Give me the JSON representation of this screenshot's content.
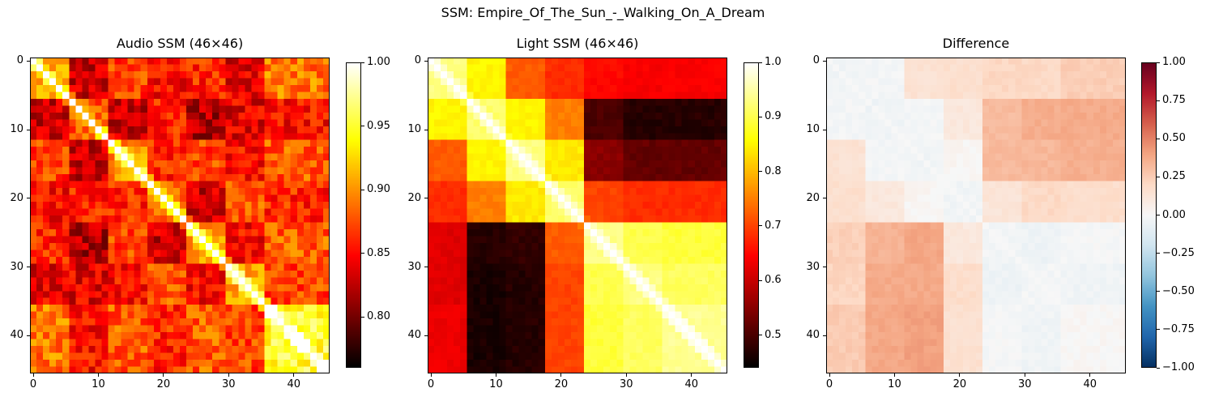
{
  "suptitle": "SSM: Empire_Of_The_Sun_-_Walking_On_A_Dream",
  "chart_data": [
    {
      "type": "heatmap",
      "title": "Audio SSM (46×46)",
      "size": 46,
      "colormap": "hot",
      "xticks": [
        0,
        10,
        20,
        30,
        40
      ],
      "yticks": [
        0,
        10,
        20,
        30,
        40
      ],
      "colorbar": {
        "vmin": 0.76,
        "vmax": 1.0,
        "ticks": [
          0.8,
          0.85,
          0.9,
          0.95,
          1.0
        ],
        "tick_labels": [
          "0.80",
          "0.85",
          "0.90",
          "0.95",
          "1.00"
        ]
      },
      "block_means": {
        "boundaries": [
          0,
          6,
          12,
          18,
          24,
          30,
          36,
          46
        ],
        "matrix": [
          [
            0.9,
            0.83,
            0.87,
            0.85,
            0.86,
            0.84,
            0.89
          ],
          [
            0.83,
            0.88,
            0.83,
            0.86,
            0.82,
            0.84,
            0.85
          ],
          [
            0.87,
            0.83,
            0.9,
            0.86,
            0.87,
            0.85,
            0.88
          ],
          [
            0.85,
            0.86,
            0.86,
            0.89,
            0.83,
            0.88,
            0.86
          ],
          [
            0.86,
            0.82,
            0.87,
            0.83,
            0.9,
            0.85,
            0.88
          ],
          [
            0.84,
            0.84,
            0.85,
            0.88,
            0.85,
            0.91,
            0.87
          ],
          [
            0.89,
            0.85,
            0.88,
            0.86,
            0.88,
            0.87,
            0.95
          ]
        ]
      }
    },
    {
      "type": "heatmap",
      "title": "Light SSM (46×46)",
      "size": 46,
      "colormap": "hot",
      "xticks": [
        0,
        10,
        20,
        30,
        40
      ],
      "yticks": [
        0,
        10,
        20,
        30,
        40
      ],
      "colorbar": {
        "vmin": 0.44,
        "vmax": 1.0,
        "ticks": [
          0.5,
          0.6,
          0.7,
          0.8,
          0.9,
          1.0
        ],
        "tick_labels": [
          "0.5",
          "0.6",
          "0.7",
          "0.8",
          "0.9",
          "1.0"
        ]
      },
      "block_means": {
        "boundaries": [
          0,
          6,
          12,
          18,
          24,
          30,
          36,
          46
        ],
        "matrix": [
          [
            0.93,
            0.85,
            0.72,
            0.68,
            0.65,
            0.64,
            0.64
          ],
          [
            0.85,
            0.92,
            0.85,
            0.75,
            0.5,
            0.47,
            0.47
          ],
          [
            0.72,
            0.85,
            0.93,
            0.84,
            0.55,
            0.52,
            0.52
          ],
          [
            0.68,
            0.75,
            0.84,
            0.92,
            0.7,
            0.68,
            0.68
          ],
          [
            0.62,
            0.47,
            0.48,
            0.72,
            0.93,
            0.9,
            0.89
          ],
          [
            0.62,
            0.46,
            0.47,
            0.7,
            0.9,
            0.93,
            0.91
          ],
          [
            0.63,
            0.46,
            0.47,
            0.7,
            0.89,
            0.91,
            0.94
          ]
        ]
      }
    },
    {
      "type": "heatmap",
      "title": "Difference",
      "size": 46,
      "colormap": "RdBu_r",
      "xticks": [
        0,
        10,
        20,
        30,
        40
      ],
      "yticks": [
        0,
        10,
        20,
        30,
        40
      ],
      "colorbar": {
        "vmin": -1.0,
        "vmax": 1.0,
        "ticks": [
          -1.0,
          -0.75,
          -0.5,
          -0.25,
          0.0,
          0.25,
          0.5,
          0.75,
          1.0
        ],
        "tick_labels": [
          "−1.00",
          "−0.75",
          "−0.50",
          "−0.25",
          "0.00",
          "0.25",
          "0.50",
          "0.75",
          "1.00"
        ]
      },
      "block_means": {
        "boundaries": [
          0,
          6,
          12,
          18,
          24,
          30,
          36,
          46
        ],
        "matrix": [
          [
            -0.03,
            -0.02,
            0.15,
            0.17,
            0.21,
            0.2,
            0.25
          ],
          [
            -0.02,
            -0.04,
            -0.02,
            0.11,
            0.32,
            0.37,
            0.38
          ],
          [
            0.15,
            -0.02,
            -0.03,
            0.02,
            0.32,
            0.33,
            0.36
          ],
          [
            0.17,
            0.11,
            0.02,
            -0.03,
            0.13,
            0.2,
            0.18
          ],
          [
            0.24,
            0.35,
            0.39,
            0.11,
            -0.03,
            -0.05,
            -0.01
          ],
          [
            0.22,
            0.38,
            0.38,
            0.18,
            -0.05,
            -0.02,
            -0.04
          ],
          [
            0.26,
            0.39,
            0.41,
            0.16,
            -0.01,
            -0.04,
            0.01
          ]
        ]
      }
    }
  ]
}
